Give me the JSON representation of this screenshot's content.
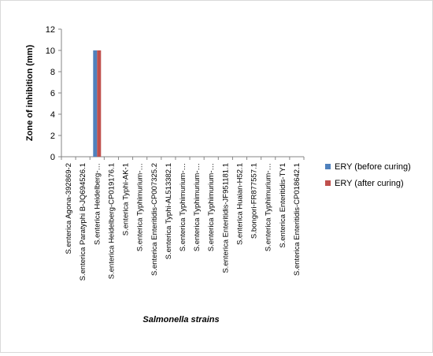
{
  "chart_data": {
    "type": "bar",
    "title": "",
    "xlabel": "Salmonella strains",
    "ylabel": "Zone of inhibition (mm)",
    "ylim": [
      0,
      12
    ],
    "yticks": [
      0,
      2,
      4,
      6,
      8,
      10,
      12
    ],
    "grid": false,
    "legend_position": "right",
    "categories": [
      "S.enterica Agona-392869-2",
      "S.enterica Paratyphi B-JQ694526.1",
      "S.enterica Heidelberg-…",
      "S.enterica Heidelberg-CP019176.1",
      "S.enterica Typhi-AK-1",
      "S.enterica Typhimurium-…",
      "S.enterica Enteritidis-CP007325.2",
      "S.enterica Typhi-AL513382.1",
      "S.enterica Typhimurium-…",
      "S.enterica Typhimurium-…",
      "S.enterica Typhimurium-…",
      "S.enterica Enteritidis-JF951181.1",
      "S.enterica Huaian-H52.1",
      "S.bongori-FR877557.1",
      "S.enterica Typhimurium-…",
      "S.enterica Enteritidis-TY1",
      "S.enterica Enteritidis-CP018642.1"
    ],
    "series": [
      {
        "name": "ERY (before curing)",
        "color": "#4f81bd",
        "values": [
          0,
          0,
          10,
          0,
          0,
          0,
          0,
          0,
          0,
          0,
          0,
          0,
          0,
          0,
          0,
          0,
          0
        ]
      },
      {
        "name": "ERY (after curing)",
        "color": "#c0504d",
        "values": [
          0,
          0,
          10,
          0,
          0,
          0,
          0,
          0,
          0,
          0,
          0,
          0,
          0,
          0,
          0,
          0,
          0
        ]
      }
    ]
  }
}
